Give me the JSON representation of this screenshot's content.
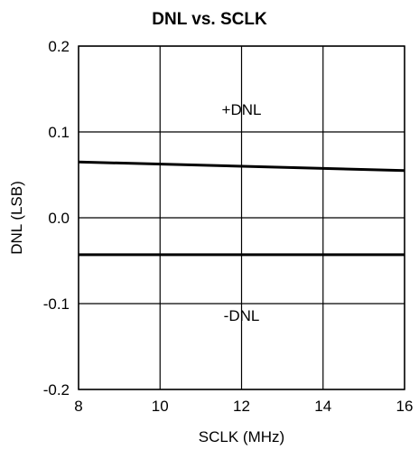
{
  "chart_data": {
    "type": "line",
    "title": "DNL vs. SCLK",
    "xlabel": "SCLK  (MHz)",
    "ylabel": "DNL (LSB)",
    "xlim": [
      8,
      16
    ],
    "ylim": [
      -0.2,
      0.2
    ],
    "x_ticks": [
      8,
      10,
      12,
      14,
      16
    ],
    "x_tick_labels": [
      "8",
      "10",
      "12",
      "14",
      "16"
    ],
    "y_ticks": [
      -0.2,
      -0.1,
      0.0,
      0.1,
      0.2
    ],
    "y_tick_labels": [
      "-0.2",
      "-0.1",
      "0.0",
      "0.1",
      "0.2"
    ],
    "grid": true,
    "series": [
      {
        "x": [
          8,
          16
        ],
        "y": [
          0.065,
          0.055
        ]
      },
      {
        "x": [
          8,
          16
        ],
        "y": [
          -0.043,
          -0.043
        ]
      }
    ],
    "annotations": [
      {
        "text": "+DNL",
        "x": 12,
        "y": 0.12
      },
      {
        "text": "-DNL",
        "x": 12,
        "y": -0.12
      }
    ]
  }
}
